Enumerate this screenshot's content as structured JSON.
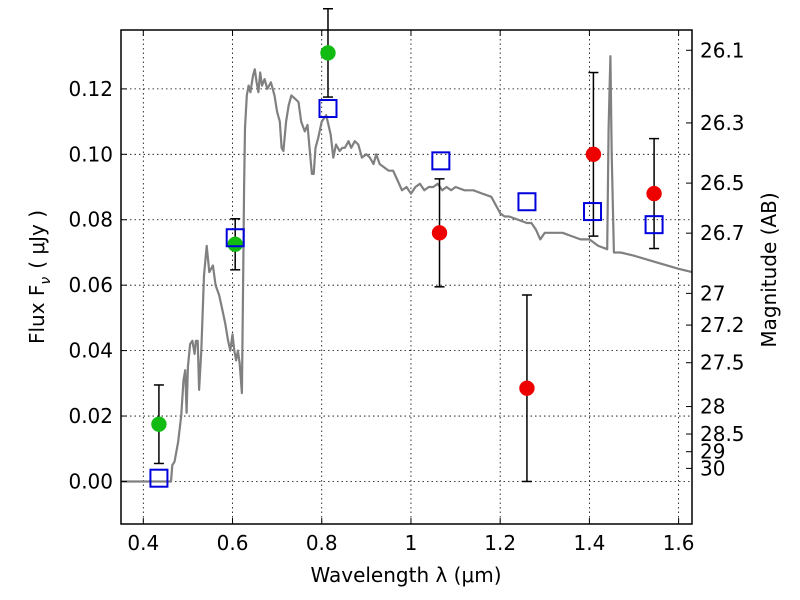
{
  "chart_data": {
    "type": "scatter",
    "xlabel": "Wavelength  λ (μm)",
    "ylabel": "Flux  F",
    "ylabel_sub": "ν",
    "ylabel_unit": "( μJy )",
    "y2label": "Magnitude (AB)",
    "xlim": [
      0.35,
      1.63
    ],
    "ylim": [
      -0.013,
      0.138
    ],
    "grid": true,
    "xticks": [
      {
        "v": 0.4,
        "label": "0.4"
      },
      {
        "v": 0.6,
        "label": "0.6"
      },
      {
        "v": 0.8,
        "label": "0.8"
      },
      {
        "v": 1.0,
        "label": "1"
      },
      {
        "v": 1.2,
        "label": "1.2"
      },
      {
        "v": 1.4,
        "label": "1.4"
      },
      {
        "v": 1.6,
        "label": "1.6"
      }
    ],
    "yticks": [
      {
        "v": 0.0,
        "label": "0.00"
      },
      {
        "v": 0.02,
        "label": "0.02"
      },
      {
        "v": 0.04,
        "label": "0.04"
      },
      {
        "v": 0.06,
        "label": "0.06"
      },
      {
        "v": 0.08,
        "label": "0.08"
      },
      {
        "v": 0.1,
        "label": "0.10"
      },
      {
        "v": 0.12,
        "label": "0.12"
      }
    ],
    "mag_ticks": [
      {
        "flux": 0.1318,
        "label": "26.1"
      },
      {
        "flux": 0.1096,
        "label": "26.3"
      },
      {
        "flux": 0.0912,
        "label": "26.5"
      },
      {
        "flux": 0.0759,
        "label": "26.7"
      },
      {
        "flux": 0.0575,
        "label": "27"
      },
      {
        "flux": 0.0478,
        "label": "27.2"
      },
      {
        "flux": 0.0363,
        "label": "27.5"
      },
      {
        "flux": 0.0229,
        "label": "28"
      },
      {
        "flux": 0.0145,
        "label": "28.5"
      },
      {
        "flux": 0.0091,
        "label": "29"
      },
      {
        "flux": 0.004,
        "label": "30"
      }
    ],
    "series": [
      {
        "name": "green detections",
        "marker": "circle",
        "color": "#11bb11",
        "points": [
          {
            "x": 0.435,
            "y": 0.0175,
            "err": 0.012
          },
          {
            "x": 0.606,
            "y": 0.0725,
            "err": 0.0078
          },
          {
            "x": 0.814,
            "y": 0.131,
            "err": 0.0135
          }
        ]
      },
      {
        "name": "red detections",
        "marker": "circle",
        "color": "#ee0000",
        "points": [
          {
            "x": 1.064,
            "y": 0.076,
            "err": 0.0165
          },
          {
            "x": 1.26,
            "y": 0.0285,
            "err": 0.0285
          },
          {
            "x": 1.409,
            "y": 0.1,
            "err": 0.025
          },
          {
            "x": 1.545,
            "y": 0.088,
            "err": 0.0168
          }
        ]
      },
      {
        "name": "model fluxes",
        "marker": "open-square",
        "color": "#0000dd",
        "points": [
          {
            "x": 0.435,
            "y": 0.001
          },
          {
            "x": 0.606,
            "y": 0.0745
          },
          {
            "x": 0.814,
            "y": 0.114
          },
          {
            "x": 1.067,
            "y": 0.098
          },
          {
            "x": 1.26,
            "y": 0.0855
          },
          {
            "x": 1.407,
            "y": 0.0825
          },
          {
            "x": 1.545,
            "y": 0.0785
          }
        ]
      }
    ],
    "model_spectrum": {
      "name": "template SED",
      "color": "#808080",
      "points": [
        [
          0.35,
          0.0
        ],
        [
          0.462,
          0.0
        ],
        [
          0.465,
          0.005
        ],
        [
          0.47,
          0.006
        ],
        [
          0.478,
          0.012
        ],
        [
          0.485,
          0.02
        ],
        [
          0.49,
          0.031
        ],
        [
          0.494,
          0.034
        ],
        [
          0.497,
          0.021
        ],
        [
          0.5,
          0.035
        ],
        [
          0.505,
          0.042
        ],
        [
          0.51,
          0.043
        ],
        [
          0.515,
          0.039
        ],
        [
          0.518,
          0.043
        ],
        [
          0.522,
          0.043
        ],
        [
          0.525,
          0.028
        ],
        [
          0.53,
          0.04
        ],
        [
          0.536,
          0.063
        ],
        [
          0.542,
          0.072
        ],
        [
          0.548,
          0.064
        ],
        [
          0.556,
          0.066
        ],
        [
          0.562,
          0.06
        ],
        [
          0.57,
          0.057
        ],
        [
          0.578,
          0.052
        ],
        [
          0.584,
          0.048
        ],
        [
          0.59,
          0.043
        ],
        [
          0.595,
          0.04
        ],
        [
          0.6,
          0.045
        ],
        [
          0.604,
          0.04
        ],
        [
          0.608,
          0.037
        ],
        [
          0.612,
          0.04
        ],
        [
          0.616,
          0.036
        ],
        [
          0.621,
          0.027
        ],
        [
          0.624,
          0.063
        ],
        [
          0.626,
          0.09
        ],
        [
          0.628,
          0.108
        ],
        [
          0.632,
          0.118
        ],
        [
          0.636,
          0.121
        ],
        [
          0.64,
          0.119
        ],
        [
          0.646,
          0.124
        ],
        [
          0.65,
          0.126
        ],
        [
          0.654,
          0.122
        ],
        [
          0.658,
          0.119
        ],
        [
          0.662,
          0.125
        ],
        [
          0.666,
          0.121
        ],
        [
          0.672,
          0.123
        ],
        [
          0.678,
          0.12
        ],
        [
          0.686,
          0.122
        ],
        [
          0.694,
          0.118
        ],
        [
          0.7,
          0.113
        ],
        [
          0.706,
          0.11
        ],
        [
          0.71,
          0.102
        ],
        [
          0.714,
          0.101
        ],
        [
          0.72,
          0.11
        ],
        [
          0.726,
          0.115
        ],
        [
          0.732,
          0.118
        ],
        [
          0.74,
          0.117
        ],
        [
          0.748,
          0.116
        ],
        [
          0.754,
          0.11
        ],
        [
          0.762,
          0.107
        ],
        [
          0.768,
          0.109
        ],
        [
          0.774,
          0.1
        ],
        [
          0.778,
          0.094
        ],
        [
          0.782,
          0.094
        ],
        [
          0.786,
          0.102
        ],
        [
          0.792,
          0.105
        ],
        [
          0.8,
          0.11
        ],
        [
          0.81,
          0.112
        ],
        [
          0.82,
          0.106
        ],
        [
          0.826,
          0.099
        ],
        [
          0.832,
          0.103
        ],
        [
          0.84,
          0.101
        ],
        [
          0.846,
          0.102
        ],
        [
          0.852,
          0.102
        ],
        [
          0.86,
          0.104
        ],
        [
          0.866,
          0.102
        ],
        [
          0.874,
          0.104
        ],
        [
          0.882,
          0.103
        ],
        [
          0.89,
          0.099
        ],
        [
          0.9,
          0.1
        ],
        [
          0.908,
          0.099
        ],
        [
          0.916,
          0.097
        ],
        [
          0.922,
          0.1
        ],
        [
          0.93,
          0.097
        ],
        [
          0.94,
          0.096
        ],
        [
          0.95,
          0.095
        ],
        [
          0.96,
          0.095
        ],
        [
          0.97,
          0.092
        ],
        [
          0.98,
          0.089
        ],
        [
          0.99,
          0.09
        ],
        [
          1.0,
          0.088
        ],
        [
          1.01,
          0.09
        ],
        [
          1.02,
          0.091
        ],
        [
          1.03,
          0.089
        ],
        [
          1.04,
          0.09
        ],
        [
          1.05,
          0.09
        ],
        [
          1.06,
          0.091
        ],
        [
          1.07,
          0.089
        ],
        [
          1.08,
          0.09
        ],
        [
          1.09,
          0.089
        ],
        [
          1.1,
          0.09
        ],
        [
          1.12,
          0.089
        ],
        [
          1.14,
          0.089
        ],
        [
          1.16,
          0.088
        ],
        [
          1.18,
          0.087
        ],
        [
          1.2,
          0.082
        ],
        [
          1.21,
          0.081
        ],
        [
          1.22,
          0.081
        ],
        [
          1.24,
          0.08
        ],
        [
          1.26,
          0.079
        ],
        [
          1.27,
          0.079
        ],
        [
          1.28,
          0.077
        ],
        [
          1.29,
          0.074
        ],
        [
          1.3,
          0.076
        ],
        [
          1.32,
          0.076
        ],
        [
          1.34,
          0.076
        ],
        [
          1.36,
          0.075
        ],
        [
          1.38,
          0.074
        ],
        [
          1.4,
          0.074
        ],
        [
          1.42,
          0.072
        ],
        [
          1.44,
          0.071
        ],
        [
          1.443,
          0.108
        ],
        [
          1.447,
          0.13
        ],
        [
          1.45,
          0.1
        ],
        [
          1.455,
          0.07
        ],
        [
          1.47,
          0.07
        ],
        [
          1.5,
          0.069
        ],
        [
          1.55,
          0.067
        ],
        [
          1.6,
          0.065
        ],
        [
          1.63,
          0.064
        ]
      ]
    }
  }
}
